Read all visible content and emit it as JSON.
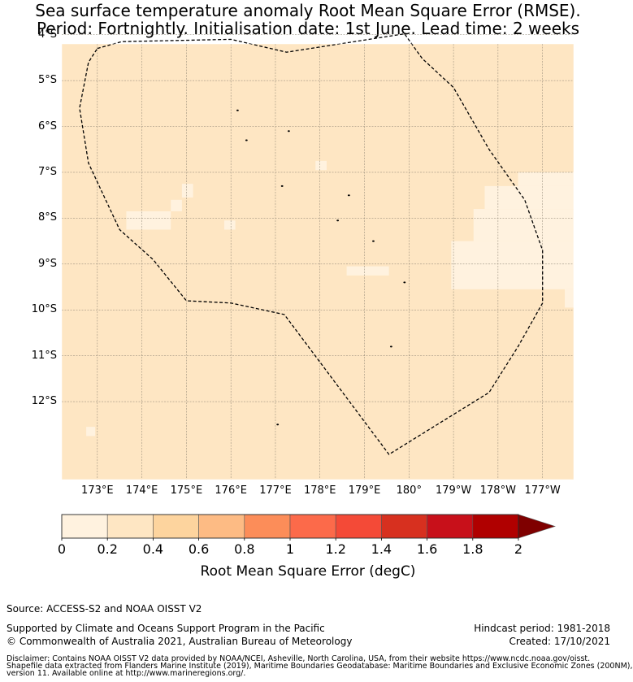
{
  "title": {
    "line1": "Sea surface temperature anomaly Root Mean Square Error (RMSE).",
    "line2": "Period: Fortnightly. Initialisation date: 1st June. Lead time: 2 weeks"
  },
  "map": {
    "lon_range": [
      172.2,
      183.7
    ],
    "lat_range": [
      -4.2,
      -13.7
    ],
    "lat_ticks": [
      {
        "value": -4,
        "label": "4°S"
      },
      {
        "value": -5,
        "label": "5°S"
      },
      {
        "value": -6,
        "label": "6°S"
      },
      {
        "value": -7,
        "label": "7°S"
      },
      {
        "value": -8,
        "label": "8°S"
      },
      {
        "value": -9,
        "label": "9°S"
      },
      {
        "value": -10,
        "label": "10°S"
      },
      {
        "value": -11,
        "label": "11°S"
      },
      {
        "value": -12,
        "label": "12°S"
      }
    ],
    "lon_ticks": [
      {
        "value": 173,
        "label": "173°E"
      },
      {
        "value": 174,
        "label": "174°E"
      },
      {
        "value": 175,
        "label": "175°E"
      },
      {
        "value": 176,
        "label": "176°E"
      },
      {
        "value": 177,
        "label": "177°E"
      },
      {
        "value": 178,
        "label": "178°E"
      },
      {
        "value": 179,
        "label": "179°E"
      },
      {
        "value": 180,
        "label": "180°"
      },
      {
        "value": 181,
        "label": "179°W"
      },
      {
        "value": 182,
        "label": "178°W"
      },
      {
        "value": 183,
        "label": "177°W"
      }
    ],
    "background_color": "#fee6c3",
    "low_error_color": "#fff2df",
    "eez_boundary": [
      [
        173.0,
        -4.3
      ],
      [
        173.55,
        -4.15
      ],
      [
        176.0,
        -4.1
      ],
      [
        177.25,
        -4.38
      ],
      [
        179.9,
        -3.98
      ],
      [
        180.3,
        -4.52
      ],
      [
        181.0,
        -5.15
      ],
      [
        181.8,
        -6.5
      ],
      [
        182.6,
        -7.6
      ],
      [
        183.0,
        -8.7
      ],
      [
        183.0,
        -9.85
      ],
      [
        182.45,
        -10.8
      ],
      [
        181.8,
        -11.8
      ],
      [
        179.55,
        -13.15
      ],
      [
        177.2,
        -10.1
      ],
      [
        176.0,
        -9.85
      ],
      [
        175.0,
        -9.8
      ],
      [
        174.25,
        -8.9
      ],
      [
        173.5,
        -8.25
      ],
      [
        172.8,
        -6.8
      ],
      [
        172.6,
        -5.6
      ],
      [
        172.8,
        -4.6
      ],
      [
        173.0,
        -4.3
      ]
    ],
    "low_error_cells": [
      [
        173.65,
        -7.85,
        174.65,
        -8.25
      ],
      [
        174.65,
        -7.6,
        174.9,
        -7.85
      ],
      [
        174.9,
        -7.25,
        175.15,
        -7.55
      ],
      [
        175.85,
        -8.05,
        176.1,
        -8.25
      ],
      [
        177.9,
        -6.75,
        178.15,
        -6.95
      ],
      [
        178.6,
        -9.05,
        179.55,
        -9.25
      ],
      [
        180.95,
        -8.5,
        183.7,
        -9.55
      ],
      [
        181.45,
        -7.8,
        183.7,
        -8.5
      ],
      [
        181.7,
        -7.3,
        183.7,
        -7.8
      ],
      [
        182.45,
        -7.0,
        183.7,
        -7.3
      ],
      [
        183.5,
        -9.55,
        183.7,
        -9.95
      ],
      [
        172.75,
        -12.55,
        172.95,
        -12.75
      ]
    ],
    "islands": [
      [
        176.15,
        -5.65
      ],
      [
        177.3,
        -6.1
      ],
      [
        176.35,
        -6.3
      ],
      [
        177.15,
        -7.3
      ],
      [
        178.65,
        -7.5
      ],
      [
        178.4,
        -8.05
      ],
      [
        179.2,
        -8.5
      ],
      [
        179.9,
        -9.4
      ],
      [
        179.6,
        -10.8
      ],
      [
        177.05,
        -12.5
      ]
    ]
  },
  "colorbar": {
    "ticks": [
      "0",
      "0.2",
      "0.4",
      "0.6",
      "0.8",
      "1",
      "1.2",
      "1.4",
      "1.6",
      "1.8",
      "2"
    ],
    "colors": [
      "#fff2df",
      "#fee6c3",
      "#fdd49e",
      "#fdbb84",
      "#fc8d59",
      "#fc6a4a",
      "#f44a37",
      "#d7301f",
      "#c8101a",
      "#b00000"
    ],
    "extend_color": "#7f0000",
    "label": "Root Mean Square Error (degC)"
  },
  "footer": {
    "source": "Source: ACCESS-S2 and NOAA OISST V2",
    "support": "Supported by Climate and Oceans Support Program in the Pacific",
    "copyright": "© Commonwealth of Australia 2021, Australian Bureau of Meteorology",
    "hindcast": "Hindcast period: 1981-2018",
    "created": "Created: 17/10/2021",
    "disclaimer1": "Disclaimer: Contains NOAA OISST V2 data provided by NOAA/NCEI, Asheville, North Carolina, USA, from their website https://www.ncdc.noaa.gov/oisst.",
    "disclaimer2": "Shapefile data extracted from Flanders Marine Institute (2019), Maritime Boundaries Geodatabase: Maritime Boundaries and Exclusive Economic Zones (200NM),",
    "disclaimer3": "version 11. Available online at http://www.marineregions.org/."
  }
}
